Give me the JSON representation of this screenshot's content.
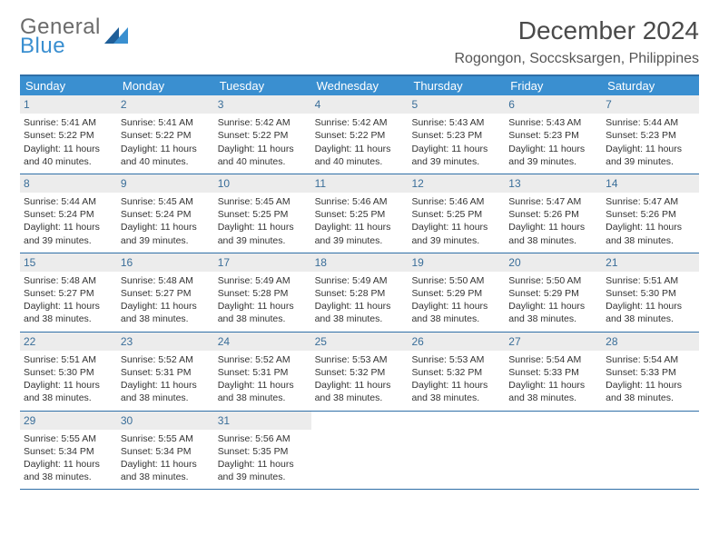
{
  "logo": {
    "line1": "General",
    "line2": "Blue"
  },
  "title": "December 2024",
  "location": "Rogongon, Soccsksargen, Philippines",
  "colors": {
    "header_bg": "#3a8fd0",
    "header_text": "#ffffff",
    "rule": "#2f6fa7",
    "daynum_bg": "#ececec",
    "daynum_text": "#3a6e99",
    "body_text": "#333333",
    "logo_gray": "#6b6b6b",
    "logo_blue": "#3a8fd0"
  },
  "dow": [
    "Sunday",
    "Monday",
    "Tuesday",
    "Wednesday",
    "Thursday",
    "Friday",
    "Saturday"
  ],
  "weeks": [
    [
      {
        "n": "1",
        "sr": "Sunrise: 5:41 AM",
        "ss": "Sunset: 5:22 PM",
        "d1": "Daylight: 11 hours",
        "d2": "and 40 minutes."
      },
      {
        "n": "2",
        "sr": "Sunrise: 5:41 AM",
        "ss": "Sunset: 5:22 PM",
        "d1": "Daylight: 11 hours",
        "d2": "and 40 minutes."
      },
      {
        "n": "3",
        "sr": "Sunrise: 5:42 AM",
        "ss": "Sunset: 5:22 PM",
        "d1": "Daylight: 11 hours",
        "d2": "and 40 minutes."
      },
      {
        "n": "4",
        "sr": "Sunrise: 5:42 AM",
        "ss": "Sunset: 5:22 PM",
        "d1": "Daylight: 11 hours",
        "d2": "and 40 minutes."
      },
      {
        "n": "5",
        "sr": "Sunrise: 5:43 AM",
        "ss": "Sunset: 5:23 PM",
        "d1": "Daylight: 11 hours",
        "d2": "and 39 minutes."
      },
      {
        "n": "6",
        "sr": "Sunrise: 5:43 AM",
        "ss": "Sunset: 5:23 PM",
        "d1": "Daylight: 11 hours",
        "d2": "and 39 minutes."
      },
      {
        "n": "7",
        "sr": "Sunrise: 5:44 AM",
        "ss": "Sunset: 5:23 PM",
        "d1": "Daylight: 11 hours",
        "d2": "and 39 minutes."
      }
    ],
    [
      {
        "n": "8",
        "sr": "Sunrise: 5:44 AM",
        "ss": "Sunset: 5:24 PM",
        "d1": "Daylight: 11 hours",
        "d2": "and 39 minutes."
      },
      {
        "n": "9",
        "sr": "Sunrise: 5:45 AM",
        "ss": "Sunset: 5:24 PM",
        "d1": "Daylight: 11 hours",
        "d2": "and 39 minutes."
      },
      {
        "n": "10",
        "sr": "Sunrise: 5:45 AM",
        "ss": "Sunset: 5:25 PM",
        "d1": "Daylight: 11 hours",
        "d2": "and 39 minutes."
      },
      {
        "n": "11",
        "sr": "Sunrise: 5:46 AM",
        "ss": "Sunset: 5:25 PM",
        "d1": "Daylight: 11 hours",
        "d2": "and 39 minutes."
      },
      {
        "n": "12",
        "sr": "Sunrise: 5:46 AM",
        "ss": "Sunset: 5:25 PM",
        "d1": "Daylight: 11 hours",
        "d2": "and 39 minutes."
      },
      {
        "n": "13",
        "sr": "Sunrise: 5:47 AM",
        "ss": "Sunset: 5:26 PM",
        "d1": "Daylight: 11 hours",
        "d2": "and 38 minutes."
      },
      {
        "n": "14",
        "sr": "Sunrise: 5:47 AM",
        "ss": "Sunset: 5:26 PM",
        "d1": "Daylight: 11 hours",
        "d2": "and 38 minutes."
      }
    ],
    [
      {
        "n": "15",
        "sr": "Sunrise: 5:48 AM",
        "ss": "Sunset: 5:27 PM",
        "d1": "Daylight: 11 hours",
        "d2": "and 38 minutes."
      },
      {
        "n": "16",
        "sr": "Sunrise: 5:48 AM",
        "ss": "Sunset: 5:27 PM",
        "d1": "Daylight: 11 hours",
        "d2": "and 38 minutes."
      },
      {
        "n": "17",
        "sr": "Sunrise: 5:49 AM",
        "ss": "Sunset: 5:28 PM",
        "d1": "Daylight: 11 hours",
        "d2": "and 38 minutes."
      },
      {
        "n": "18",
        "sr": "Sunrise: 5:49 AM",
        "ss": "Sunset: 5:28 PM",
        "d1": "Daylight: 11 hours",
        "d2": "and 38 minutes."
      },
      {
        "n": "19",
        "sr": "Sunrise: 5:50 AM",
        "ss": "Sunset: 5:29 PM",
        "d1": "Daylight: 11 hours",
        "d2": "and 38 minutes."
      },
      {
        "n": "20",
        "sr": "Sunrise: 5:50 AM",
        "ss": "Sunset: 5:29 PM",
        "d1": "Daylight: 11 hours",
        "d2": "and 38 minutes."
      },
      {
        "n": "21",
        "sr": "Sunrise: 5:51 AM",
        "ss": "Sunset: 5:30 PM",
        "d1": "Daylight: 11 hours",
        "d2": "and 38 minutes."
      }
    ],
    [
      {
        "n": "22",
        "sr": "Sunrise: 5:51 AM",
        "ss": "Sunset: 5:30 PM",
        "d1": "Daylight: 11 hours",
        "d2": "and 38 minutes."
      },
      {
        "n": "23",
        "sr": "Sunrise: 5:52 AM",
        "ss": "Sunset: 5:31 PM",
        "d1": "Daylight: 11 hours",
        "d2": "and 38 minutes."
      },
      {
        "n": "24",
        "sr": "Sunrise: 5:52 AM",
        "ss": "Sunset: 5:31 PM",
        "d1": "Daylight: 11 hours",
        "d2": "and 38 minutes."
      },
      {
        "n": "25",
        "sr": "Sunrise: 5:53 AM",
        "ss": "Sunset: 5:32 PM",
        "d1": "Daylight: 11 hours",
        "d2": "and 38 minutes."
      },
      {
        "n": "26",
        "sr": "Sunrise: 5:53 AM",
        "ss": "Sunset: 5:32 PM",
        "d1": "Daylight: 11 hours",
        "d2": "and 38 minutes."
      },
      {
        "n": "27",
        "sr": "Sunrise: 5:54 AM",
        "ss": "Sunset: 5:33 PM",
        "d1": "Daylight: 11 hours",
        "d2": "and 38 minutes."
      },
      {
        "n": "28",
        "sr": "Sunrise: 5:54 AM",
        "ss": "Sunset: 5:33 PM",
        "d1": "Daylight: 11 hours",
        "d2": "and 38 minutes."
      }
    ],
    [
      {
        "n": "29",
        "sr": "Sunrise: 5:55 AM",
        "ss": "Sunset: 5:34 PM",
        "d1": "Daylight: 11 hours",
        "d2": "and 38 minutes."
      },
      {
        "n": "30",
        "sr": "Sunrise: 5:55 AM",
        "ss": "Sunset: 5:34 PM",
        "d1": "Daylight: 11 hours",
        "d2": "and 38 minutes."
      },
      {
        "n": "31",
        "sr": "Sunrise: 5:56 AM",
        "ss": "Sunset: 5:35 PM",
        "d1": "Daylight: 11 hours",
        "d2": "and 39 minutes."
      },
      null,
      null,
      null,
      null
    ]
  ]
}
